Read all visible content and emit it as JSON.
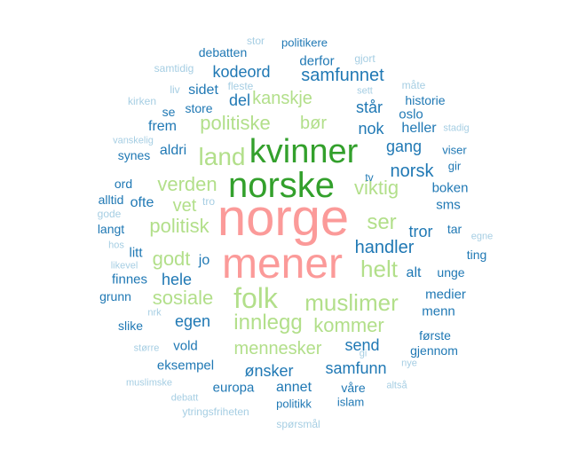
{
  "palette": {
    "top": "#fb9a99",
    "large": "#33a02c",
    "medium": "#b2df8a",
    "small": "#1f78b4",
    "faint": "#a6cee3"
  },
  "words": [
    {
      "text": "norge",
      "group": "top"
    },
    {
      "text": "mener",
      "group": "top"
    },
    {
      "text": "norske",
      "group": "large"
    },
    {
      "text": "kvinner",
      "group": "large"
    },
    {
      "text": "folk",
      "group": "medium"
    },
    {
      "text": "muslimer",
      "group": "medium"
    },
    {
      "text": "land",
      "group": "medium"
    },
    {
      "text": "innlegg",
      "group": "medium"
    },
    {
      "text": "kommer",
      "group": "medium"
    },
    {
      "text": "mennesker",
      "group": "medium"
    },
    {
      "text": "helt",
      "group": "medium"
    },
    {
      "text": "sosiale",
      "group": "medium"
    },
    {
      "text": "politisk",
      "group": "medium"
    },
    {
      "text": "godt",
      "group": "medium"
    },
    {
      "text": "vet",
      "group": "medium"
    },
    {
      "text": "verden",
      "group": "medium"
    },
    {
      "text": "viktig",
      "group": "medium"
    },
    {
      "text": "ser",
      "group": "medium"
    },
    {
      "text": "politiske",
      "group": "medium"
    },
    {
      "text": "kanskje",
      "group": "medium"
    },
    {
      "text": "bør",
      "group": "medium"
    },
    {
      "text": "handler",
      "group": "small"
    },
    {
      "text": "norsk",
      "group": "small"
    },
    {
      "text": "samfunnet",
      "group": "small"
    },
    {
      "text": "nok",
      "group": "small"
    },
    {
      "text": "samfunn",
      "group": "small"
    },
    {
      "text": "ønsker",
      "group": "small"
    },
    {
      "text": "egen",
      "group": "small"
    },
    {
      "text": "hele",
      "group": "small"
    },
    {
      "text": "send",
      "group": "small"
    },
    {
      "text": "gang",
      "group": "small"
    },
    {
      "text": "tror",
      "group": "small"
    },
    {
      "text": "alt",
      "group": "small"
    },
    {
      "text": "kodeord",
      "group": "small"
    },
    {
      "text": "del",
      "group": "small"
    },
    {
      "text": "står",
      "group": "small"
    },
    {
      "text": "sidet",
      "group": "small"
    },
    {
      "text": "frem",
      "group": "small"
    },
    {
      "text": "aldri",
      "group": "small"
    },
    {
      "text": "ofte",
      "group": "small"
    },
    {
      "text": "sms",
      "group": "small"
    },
    {
      "text": "boken",
      "group": "small"
    },
    {
      "text": "jo",
      "group": "small"
    },
    {
      "text": "litt",
      "group": "small"
    },
    {
      "text": "finnes",
      "group": "small"
    },
    {
      "text": "annet",
      "group": "small"
    },
    {
      "text": "eksempel",
      "group": "small"
    },
    {
      "text": "vold",
      "group": "small"
    },
    {
      "text": "europa",
      "group": "small"
    },
    {
      "text": "medier",
      "group": "small"
    },
    {
      "text": "menn",
      "group": "small"
    },
    {
      "text": "unge",
      "group": "small"
    },
    {
      "text": "gjennom",
      "group": "small"
    },
    {
      "text": "første",
      "group": "small"
    },
    {
      "text": "våre",
      "group": "small"
    },
    {
      "text": "islam",
      "group": "small"
    },
    {
      "text": "politikk",
      "group": "small"
    },
    {
      "text": "heller",
      "group": "small"
    },
    {
      "text": "oslo",
      "group": "small"
    },
    {
      "text": "historie",
      "group": "small"
    },
    {
      "text": "derfor",
      "group": "small"
    },
    {
      "text": "politikere",
      "group": "small"
    },
    {
      "text": "debatten",
      "group": "small"
    },
    {
      "text": "store",
      "group": "small"
    },
    {
      "text": "se",
      "group": "small"
    },
    {
      "text": "synes",
      "group": "small"
    },
    {
      "text": "viser",
      "group": "small"
    },
    {
      "text": "gir",
      "group": "small"
    },
    {
      "text": "ord",
      "group": "small"
    },
    {
      "text": "alltid",
      "group": "small"
    },
    {
      "text": "langt",
      "group": "small"
    },
    {
      "text": "grunn",
      "group": "small"
    },
    {
      "text": "slike",
      "group": "small"
    },
    {
      "text": "ting",
      "group": "small"
    },
    {
      "text": "tar",
      "group": "small"
    },
    {
      "text": "tv",
      "group": "small"
    },
    {
      "text": "måte",
      "group": "faint"
    },
    {
      "text": "gjort",
      "group": "faint"
    },
    {
      "text": "stor",
      "group": "faint"
    },
    {
      "text": "samtidig",
      "group": "faint"
    },
    {
      "text": "liv",
      "group": "faint"
    },
    {
      "text": "fleste",
      "group": "faint"
    },
    {
      "text": "sett",
      "group": "faint"
    },
    {
      "text": "kirken",
      "group": "faint"
    },
    {
      "text": "stadig",
      "group": "faint"
    },
    {
      "text": "vanskelig",
      "group": "faint"
    },
    {
      "text": "tro",
      "group": "faint"
    },
    {
      "text": "gode",
      "group": "faint"
    },
    {
      "text": "hos",
      "group": "faint"
    },
    {
      "text": "egne",
      "group": "faint"
    },
    {
      "text": "likevel",
      "group": "faint"
    },
    {
      "text": "nrk",
      "group": "faint"
    },
    {
      "text": "større",
      "group": "faint"
    },
    {
      "text": "gi",
      "group": "faint"
    },
    {
      "text": "nye",
      "group": "faint"
    },
    {
      "text": "muslimske",
      "group": "faint"
    },
    {
      "text": "debatt",
      "group": "faint"
    },
    {
      "text": "altså",
      "group": "faint"
    },
    {
      "text": "ytringsfriheten",
      "group": "faint"
    },
    {
      "text": "spørsmål",
      "group": "faint"
    }
  ]
}
